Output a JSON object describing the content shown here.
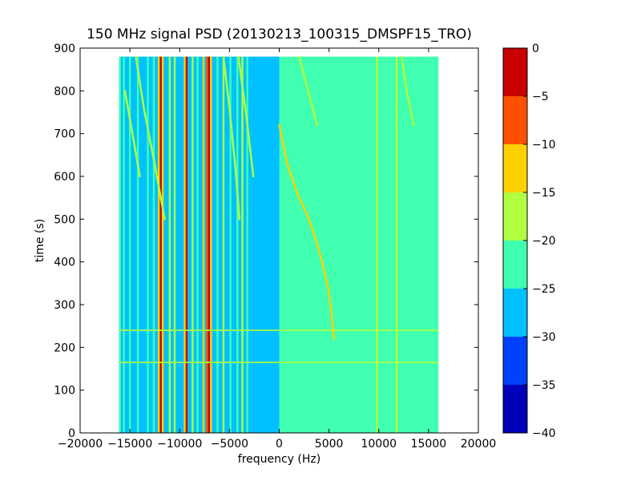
{
  "chart_data": {
    "type": "heatmap",
    "title": "150 MHz signal PSD (20130213_100315_DMSPF15_TRO)",
    "xlabel": "frequency (Hz)",
    "ylabel": "time (s)",
    "xlim": [
      -20000,
      20000
    ],
    "ylim": [
      0,
      900
    ],
    "xticks": [
      -20000,
      -15000,
      -10000,
      -5000,
      0,
      5000,
      10000,
      15000,
      20000
    ],
    "xtick_labels": [
      "−20000",
      "−15000",
      "−10000",
      "−5000",
      "0",
      "5000",
      "10000",
      "15000",
      "20000"
    ],
    "yticks": [
      0,
      100,
      200,
      300,
      400,
      500,
      600,
      700,
      800,
      900
    ],
    "ytick_labels": [
      "0",
      "100",
      "200",
      "300",
      "400",
      "500",
      "600",
      "700",
      "800",
      "900"
    ],
    "data_extent": {
      "x": [
        -16000,
        16000
      ],
      "y": [
        0,
        880
      ]
    },
    "grid": false,
    "colorbar": {
      "levels": [
        -40,
        -35,
        -30,
        -25,
        -20,
        -15,
        -10,
        -5,
        0
      ],
      "tick_labels": [
        "−40",
        "−35",
        "−30",
        "−25",
        "−20",
        "−15",
        "−10",
        "−5",
        "0"
      ],
      "colors": [
        "#0000bb",
        "#0040ff",
        "#00c0ff",
        "#40ffb0",
        "#b0ff40",
        "#ffd000",
        "#ff5000",
        "#c80000"
      ]
    },
    "background_levels": [
      {
        "x": [
          -16000,
          0
        ],
        "level": -27.5
      },
      {
        "x": [
          0,
          16000
        ],
        "level": -22.5
      }
    ],
    "vertical_lines": [
      {
        "x": -16000,
        "level": -22.5
      },
      {
        "x": -15600,
        "level": -22.5
      },
      {
        "x": -15000,
        "level": -22.5
      },
      {
        "x": -14200,
        "level": -22.5
      },
      {
        "x": -13200,
        "level": -22.5
      },
      {
        "x": -12600,
        "level": -22.5
      },
      {
        "x": -12100,
        "level": -12.5
      },
      {
        "x": -11900,
        "level": -2.5
      },
      {
        "x": -11700,
        "level": -12.5
      },
      {
        "x": -11000,
        "level": -17.5
      },
      {
        "x": -10500,
        "level": -17.5
      },
      {
        "x": -9500,
        "level": -12.5
      },
      {
        "x": -9300,
        "level": -2.5
      },
      {
        "x": -8700,
        "level": -17.5
      },
      {
        "x": -8200,
        "level": -22.5
      },
      {
        "x": -7600,
        "level": -12.5
      },
      {
        "x": -7250,
        "level": -7.5
      },
      {
        "x": -7050,
        "level": -2.5
      },
      {
        "x": -6850,
        "level": -12.5
      },
      {
        "x": -6200,
        "level": -22.5
      },
      {
        "x": -5600,
        "level": -17.5
      },
      {
        "x": -4900,
        "level": -22.5
      },
      {
        "x": -4200,
        "level": -22.5
      },
      {
        "x": -3700,
        "level": -17.5
      },
      {
        "x": -3200,
        "level": -22.5
      },
      {
        "x": 100,
        "level": -22.5
      },
      {
        "x": 800,
        "level": -22.5
      },
      {
        "x": 9800,
        "level": -17.5
      },
      {
        "x": 10300,
        "level": -22.5
      },
      {
        "x": 11000,
        "level": -22.5
      },
      {
        "x": 11800,
        "level": -17.5
      },
      {
        "x": 12400,
        "level": -22.5
      },
      {
        "x": 13200,
        "level": -22.5
      },
      {
        "x": 14600,
        "level": -22.5
      },
      {
        "x": 15200,
        "level": -22.5
      },
      {
        "x": 15800,
        "level": -22.5
      }
    ],
    "traces": [
      {
        "level": -12.5,
        "points": [
          [
            5500,
            220
          ],
          [
            5200,
            290
          ],
          [
            4900,
            340
          ],
          [
            4300,
            400
          ],
          [
            3700,
            450
          ],
          [
            2800,
            510
          ],
          [
            1800,
            560
          ],
          [
            800,
            630
          ],
          [
            0,
            720
          ]
        ]
      },
      {
        "level": -17.5,
        "points": [
          [
            -4000,
            500
          ],
          [
            -4400,
            620
          ],
          [
            -5000,
            760
          ],
          [
            -5600,
            880
          ]
        ]
      },
      {
        "level": -17.5,
        "points": [
          [
            -11500,
            500
          ],
          [
            -12600,
            640
          ],
          [
            -13600,
            760
          ],
          [
            -14400,
            880
          ]
        ]
      },
      {
        "level": -17.5,
        "points": [
          [
            -14000,
            600
          ],
          [
            -14900,
            720
          ],
          [
            -15500,
            800
          ]
        ]
      },
      {
        "level": -20.0,
        "points": [
          [
            -2600,
            600
          ],
          [
            -3300,
            740
          ],
          [
            -4100,
            880
          ]
        ]
      },
      {
        "level": -20.0,
        "points": [
          [
            13500,
            720
          ],
          [
            12800,
            800
          ],
          [
            12300,
            880
          ]
        ]
      },
      {
        "level": -20.0,
        "points": [
          [
            3800,
            720
          ],
          [
            2900,
            800
          ],
          [
            2000,
            880
          ]
        ]
      }
    ],
    "horizontal_lines": [
      {
        "y": 165,
        "level": -17.5
      },
      {
        "y": 240,
        "level": -17.5
      }
    ]
  }
}
